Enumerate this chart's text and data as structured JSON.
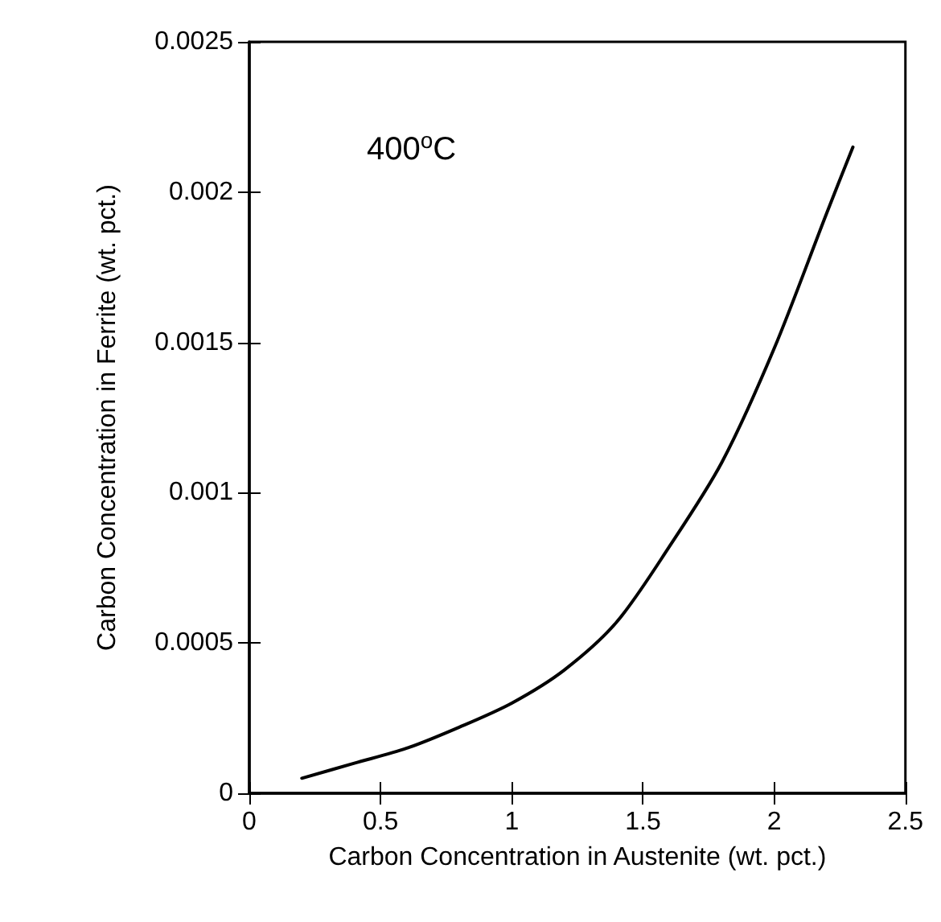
{
  "chart_data": {
    "type": "line",
    "xlabel": "Carbon Concentration in Austenite (wt. pct.)",
    "ylabel": "Carbon Concentration in Ferrite (wt. pct.)",
    "annotations": [
      "400$^{o}$C"
    ],
    "series": [
      {
        "color": "#000000",
        "x": [
          0.2,
          0.4,
          0.6,
          0.8,
          1.0,
          1.2,
          1.4,
          1.6,
          1.8,
          2.0,
          2.2,
          2.3
        ],
        "values": [
          5e-05,
          0.0001,
          0.00015,
          0.00022,
          0.0003,
          0.00041,
          0.00057,
          0.00082,
          0.0011,
          0.00148,
          0.00193,
          0.00215
        ]
      }
    ],
    "xlim": [
      0,
      2.5
    ],
    "xticks": [
      0,
      0.5,
      1,
      1.5,
      2,
      2.5
    ],
    "ylim": [
      0,
      0.0025
    ],
    "yticks": [
      0,
      0.0005,
      0.001,
      0.0015,
      0.002,
      0.0025
    ],
    "grid": false,
    "marker": "none",
    "line_style": "solid"
  }
}
